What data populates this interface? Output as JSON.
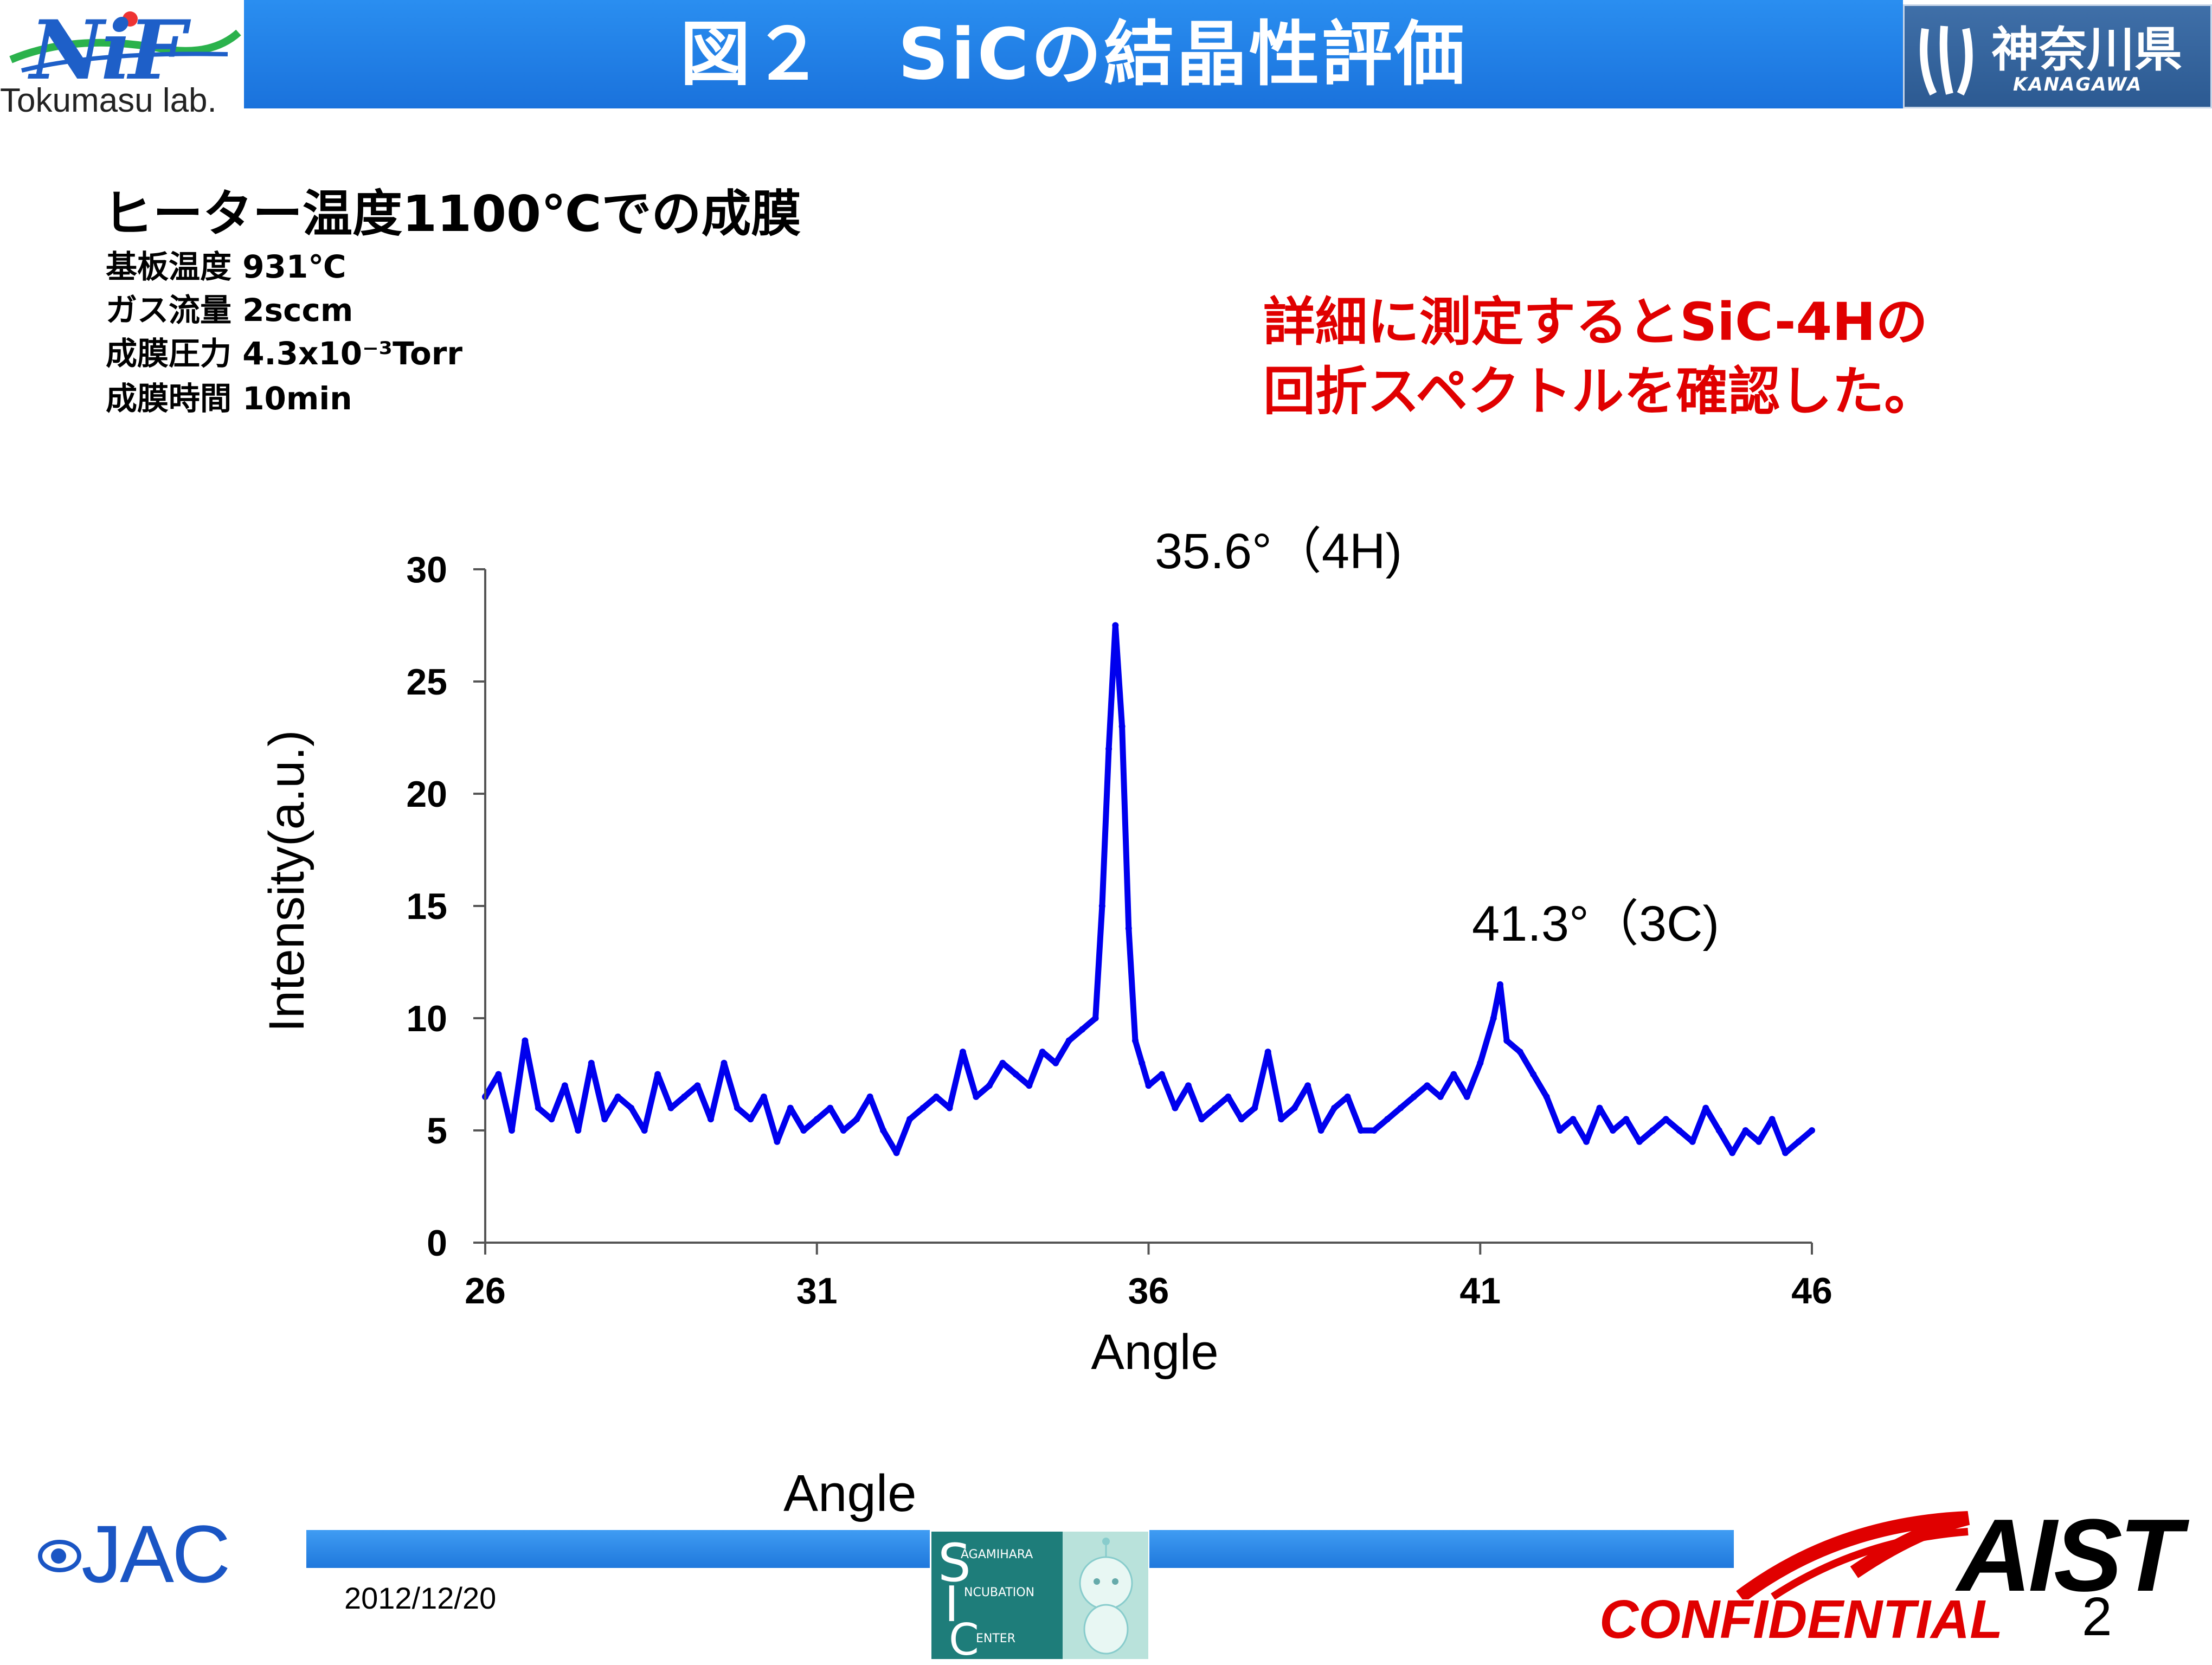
{
  "header": {
    "title": "図２　SiCの結晶性評価",
    "left_logo_text": "NiF",
    "left_logo_caption": "Tokumasu lab.",
    "right_logo_jp": "神奈川県",
    "right_logo_en": "KANAGAWA"
  },
  "conditions": {
    "heading": "ヒーター温度1100℃での成膜",
    "lines": [
      "基板温度 931℃",
      "ガス流量 2sccm",
      "成膜圧力 4.3x10⁻³Torr",
      "成膜時間  10min"
    ]
  },
  "note": {
    "line1": "詳細に測定するとSiC-4Hの",
    "line2": "回折スペクトルを確認した。"
  },
  "chart_data": {
    "type": "line",
    "xlabel": "Angle",
    "ylabel": "Intensity(a.u.)",
    "xlim": [
      26,
      46
    ],
    "ylim": [
      0,
      30
    ],
    "x_ticks": [
      26,
      31,
      36,
      41,
      46
    ],
    "y_ticks": [
      0,
      5,
      10,
      15,
      20,
      25,
      30
    ],
    "grid": false,
    "line_color": "#0000ee",
    "annotations": [
      {
        "text": "35.6°（4H)",
        "x": 35.6,
        "y": 28.0
      },
      {
        "text": "41.3°（3C)",
        "x": 41.3,
        "y": 12.0
      }
    ],
    "series": [
      {
        "x": [
          26.0,
          26.2,
          26.4,
          26.6,
          26.8,
          27.0,
          27.2,
          27.4,
          27.6,
          27.8,
          28.0,
          28.2,
          28.4,
          28.6,
          28.8,
          29.0,
          29.2,
          29.4,
          29.6,
          29.8,
          30.0,
          30.2,
          30.4,
          30.6,
          30.8,
          31.0,
          31.2,
          31.4,
          31.6,
          31.8,
          32.0,
          32.2,
          32.4,
          32.6,
          32.8,
          33.0,
          33.2,
          33.4,
          33.6,
          33.8,
          34.0,
          34.2,
          34.4,
          34.6,
          34.8,
          35.0,
          35.2,
          35.3,
          35.4,
          35.5,
          35.6,
          35.7,
          35.8,
          35.9,
          36.0,
          36.2,
          36.4,
          36.6,
          36.8,
          37.0,
          37.2,
          37.4,
          37.6,
          37.8,
          38.0,
          38.2,
          38.4,
          38.6,
          38.8,
          39.0,
          39.2,
          39.4,
          39.6,
          39.8,
          40.0,
          40.2,
          40.4,
          40.6,
          40.8,
          41.0,
          41.2,
          41.3,
          41.4,
          41.6,
          41.8,
          42.0,
          42.2,
          42.4,
          42.6,
          42.8,
          43.0,
          43.2,
          43.4,
          43.6,
          43.8,
          44.0,
          44.2,
          44.4,
          44.6,
          44.8,
          45.0,
          45.2,
          45.4,
          45.6,
          45.8,
          46.0
        ],
        "y": [
          6.5,
          7.5,
          5.0,
          9.0,
          6.0,
          5.5,
          7.0,
          5.0,
          8.0,
          5.5,
          6.5,
          6.0,
          5.0,
          7.5,
          6.0,
          6.5,
          7.0,
          5.5,
          8.0,
          6.0,
          5.5,
          6.5,
          4.5,
          6.0,
          5.0,
          5.5,
          6.0,
          5.0,
          5.5,
          6.5,
          5.0,
          4.0,
          5.5,
          6.0,
          6.5,
          6.0,
          8.5,
          6.5,
          7.0,
          8.0,
          7.5,
          7.0,
          8.5,
          8.0,
          9.0,
          9.5,
          10.0,
          15.0,
          22.0,
          27.5,
          23.0,
          14.0,
          9.0,
          8.0,
          7.0,
          7.5,
          6.0,
          7.0,
          5.5,
          6.0,
          6.5,
          5.5,
          6.0,
          8.5,
          5.5,
          6.0,
          7.0,
          5.0,
          6.0,
          6.5,
          5.0,
          5.0,
          5.5,
          6.0,
          6.5,
          7.0,
          6.5,
          7.5,
          6.5,
          8.0,
          10.0,
          11.5,
          9.0,
          8.5,
          7.5,
          6.5,
          5.0,
          5.5,
          4.5,
          6.0,
          5.0,
          5.5,
          4.5,
          5.0,
          5.5,
          5.0,
          4.5,
          6.0,
          5.0,
          4.0,
          5.0,
          4.5,
          5.5,
          4.0,
          4.5,
          5.0
        ]
      }
    ]
  },
  "footer": {
    "angle_label": "Angle",
    "date": "2012/12/20",
    "left_logo": "JAC",
    "center_logo_lines": [
      "AGAMIHARA",
      "NCUBATION",
      "ENTER"
    ],
    "right_logo": "AIST",
    "confidential": "CONFIDENTIAL",
    "page_number": "2"
  }
}
